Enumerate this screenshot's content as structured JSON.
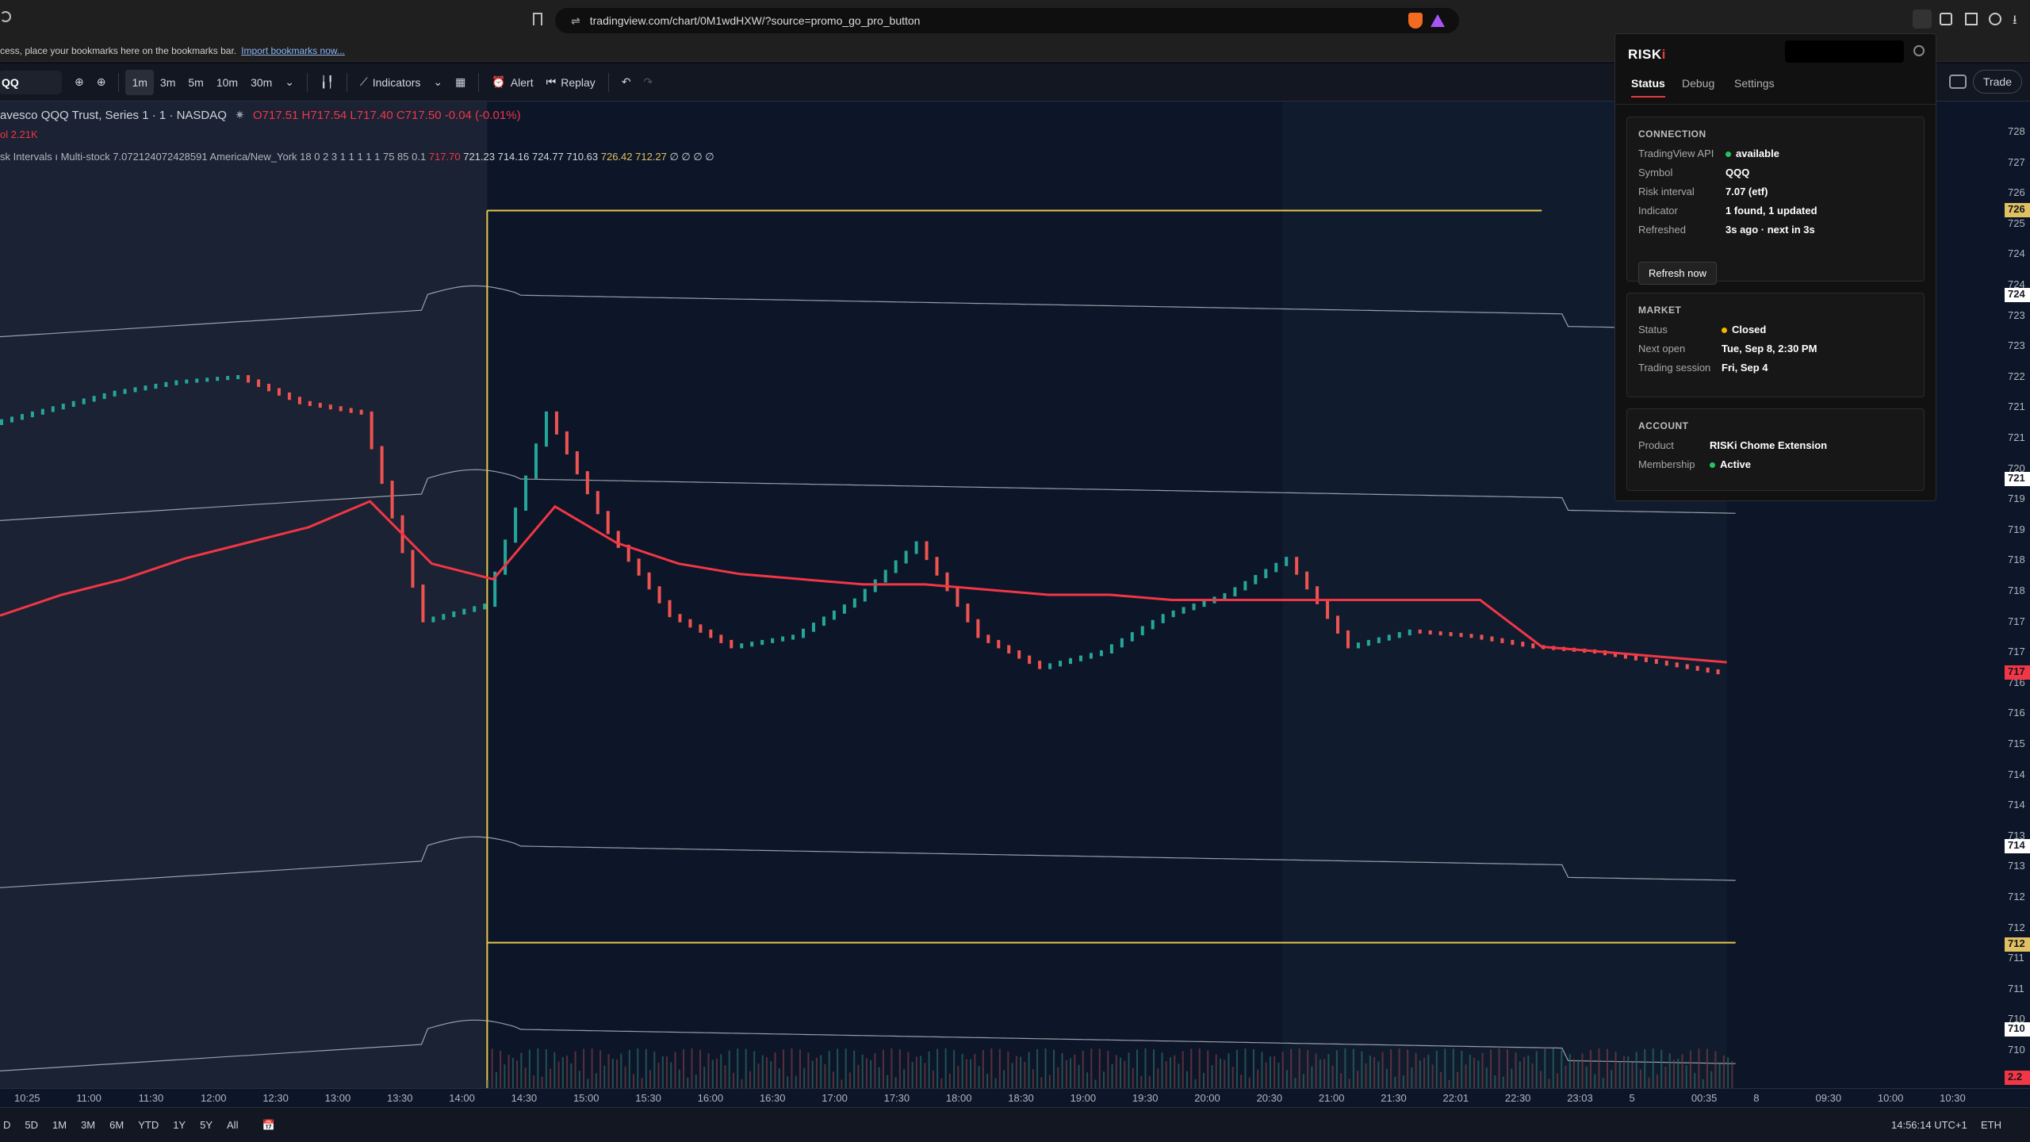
{
  "browser": {
    "url": "tradingview.com/chart/0M1wdHXW/?source=promo_go_pro_button",
    "bookmarks_message": "cess, place your bookmarks here on the bookmarks bar.",
    "import_link": "Import bookmarks now..."
  },
  "toolbar": {
    "symbol": "QQ",
    "intervals": [
      "1m",
      "3m",
      "5m",
      "10m",
      "30m"
    ],
    "active_interval": "1m",
    "indicators_label": "Indicators",
    "alert_label": "Alert",
    "replay_label": "Replay",
    "trade_label": "Trade"
  },
  "legend": {
    "title": "avesco QQQ Trust, Series 1 · 1 · NASDAQ",
    "ohlc": "O717.51  H717.54  L717.40  C717.50  -0.04 (-0.01%)",
    "volume": "ol  2.21K",
    "indicator_name": "sk Intervals  ı  Multi-stock 7.072124072428591 America/New_York 18 0 2 3 1 1 1 1 1 75 85 0.1",
    "indicator_red": "717.70",
    "indicator_white": "721.23  714.16  724.77  710.63",
    "indicator_yellow": "726.42  712.27",
    "indicator_tail": "∅  ∅  ∅  ∅"
  },
  "price_scale": {
    "labels": [
      "728",
      "727",
      "726",
      "725",
      "724",
      "724",
      "723",
      "723",
      "722",
      "721",
      "721",
      "720",
      "719",
      "719",
      "718",
      "718",
      "717",
      "717",
      "716",
      "716",
      "715",
      "714",
      "714",
      "713",
      "713",
      "712",
      "712",
      "711",
      "711",
      "710",
      "710",
      "2.2"
    ],
    "tags": [
      {
        "text": "726",
        "color": "#e0c060"
      },
      {
        "text": "724",
        "color": "#ffffff"
      },
      {
        "text": "721",
        "color": "#ffffff"
      },
      {
        "text": "717",
        "color": "#f23645"
      },
      {
        "text": "714",
        "color": "#ffffff"
      },
      {
        "text": "712",
        "color": "#e0c060"
      },
      {
        "text": "710",
        "color": "#ffffff"
      },
      {
        "text": "2.2",
        "color": "#f23645"
      }
    ]
  },
  "time_axis": [
    "10:25",
    "11:00",
    "11:30",
    "12:00",
    "12:30",
    "13:00",
    "13:30",
    "14:00",
    "14:30",
    "15:00",
    "15:30",
    "16:00",
    "16:30",
    "17:00",
    "17:30",
    "18:00",
    "18:30",
    "19:00",
    "19:30",
    "20:00",
    "20:30",
    "21:00",
    "21:30",
    "22:01",
    "22:30",
    "23:03",
    "5",
    "00:35",
    "8",
    "09:30",
    "10:00",
    "10:30"
  ],
  "bottom_bar": {
    "ranges": [
      "D",
      "5D",
      "1M",
      "3M",
      "6M",
      "YTD",
      "1Y",
      "5Y",
      "All"
    ],
    "clock": "14:56:14 UTC+1",
    "session": "ETH"
  },
  "riski": {
    "logo_main": "RISK",
    "logo_i": "i",
    "tabs": [
      "Status",
      "Debug",
      "Settings"
    ],
    "connection": {
      "title": "CONNECTION",
      "rows": [
        {
          "k": "TradingView API",
          "v": "available",
          "dot": "#22c55e"
        },
        {
          "k": "Symbol",
          "v": "QQQ"
        },
        {
          "k": "Risk interval",
          "v": "7.07 (etf)"
        },
        {
          "k": "Indicator",
          "v": "1 found, 1 updated"
        },
        {
          "k": "Refreshed",
          "v": "3s ago · next in 3s"
        }
      ],
      "button": "Refresh now"
    },
    "market": {
      "title": "MARKET",
      "rows": [
        {
          "k": "Status",
          "v": "Closed",
          "dot": "#f5b400"
        },
        {
          "k": "Next open",
          "v": "Tue, Sep 8, 2:30 PM"
        },
        {
          "k": "Trading session",
          "v": "Fri, Sep 4"
        }
      ]
    },
    "account": {
      "title": "ACCOUNT",
      "rows": [
        {
          "k": "Product",
          "v": "RISKi Chome Extension"
        },
        {
          "k": "Membership",
          "v": "Active",
          "dot": "#22c55e"
        }
      ]
    }
  },
  "chart_data": {
    "type": "line",
    "symbol": "QQQ",
    "x": [
      "10:25",
      "11:00",
      "11:30",
      "12:00",
      "12:30",
      "13:00",
      "13:30",
      "14:00",
      "14:30",
      "15:00",
      "15:30",
      "16:00",
      "16:30",
      "17:00",
      "17:30",
      "18:00",
      "18:30",
      "19:00",
      "19:30",
      "20:00",
      "20:30",
      "21:00",
      "21:30",
      "22:01",
      "22:30",
      "23:03",
      "5",
      "00:35",
      "8"
    ],
    "series": [
      {
        "name": "",
        "values": [
          722.3,
          722.6,
          722.9,
          723.1,
          723.2,
          722.7,
          722.5,
          718.5,
          718.8,
          722.5,
          720.2,
          718.6,
          718.0,
          718.2,
          718.9,
          720.0,
          718.2,
          717.6,
          717.9,
          718.6,
          719.0,
          719.7,
          718.0,
          718.3,
          718.2,
          718.0,
          717.9,
          717.7,
          717.5
        ]
      },
      {
        "name": "",
        "values": [
          718.6,
          719.0,
          719.3,
          719.7,
          720.0,
          720.3,
          720.8,
          719.6,
          719.3,
          720.7,
          720.0,
          719.6,
          719.4,
          719.3,
          719.2,
          719.2,
          719.1,
          719.0,
          719.0,
          718.9,
          718.9,
          718.9,
          718.9,
          718.9,
          718.9,
          718.0,
          717.9,
          717.8,
          717.7
        ]
      },
      {
        "name": "",
        "values": [
          726.4,
          726.4,
          726.4,
          726.4,
          726.4,
          726.4,
          726.4,
          726.4,
          726.4,
          726.4,
          726.4,
          726.4,
          726.4,
          726.4,
          726.4,
          726.4,
          726.4,
          726.4,
          726.4,
          726.4,
          726.4,
          726.4,
          726.4,
          726.4,
          726.4,
          726.4,
          726.4,
          726.4,
          726.4
        ]
      },
      {
        "name": "",
        "values": [
          712.3,
          712.3,
          712.3,
          712.3,
          712.3,
          712.3,
          712.3,
          712.3,
          712.3,
          712.3,
          712.3,
          712.3,
          712.3,
          712.3,
          712.3,
          712.3,
          712.3,
          712.3,
          712.3,
          712.3,
          712.3,
          712.3,
          712.3,
          712.3,
          712.3,
          712.3,
          712.3,
          712.3,
          712.3
        ]
      }
    ],
    "band_values": [
      724.77,
      721.23,
      714.16,
      710.63
    ],
    "ylim": [
      709.5,
      728.5
    ]
  }
}
